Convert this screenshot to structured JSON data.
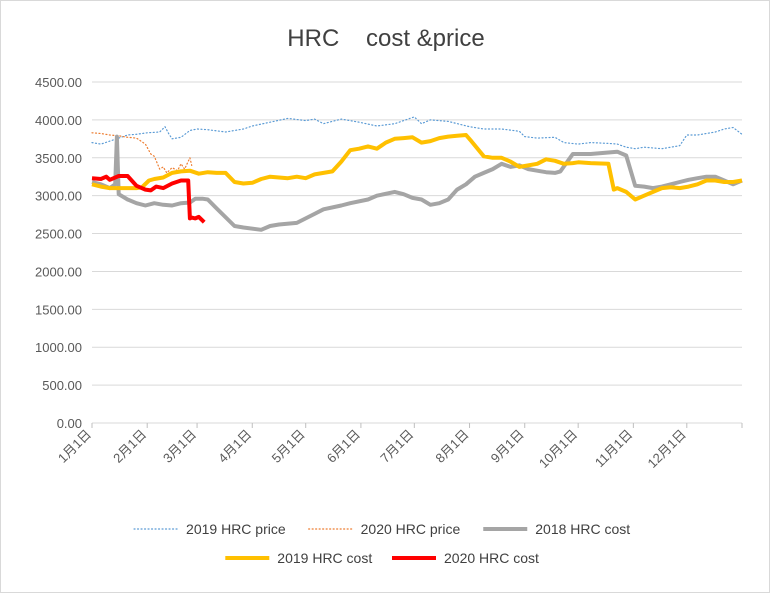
{
  "chart_data": {
    "type": "line",
    "title": "HRC    cost &price",
    "ylim": [
      0,
      4500
    ],
    "y_ticks": [
      "0.00",
      "500.00",
      "1000.00",
      "1500.00",
      "2000.00",
      "2500.00",
      "3000.00",
      "3500.00",
      "4000.00",
      "4500.00"
    ],
    "x_ticks": [
      "1月1日",
      "2月1日",
      "3月1日",
      "4月1日",
      "5月1日",
      "6月1日",
      "7月1日",
      "8月1日",
      "9月1日",
      "10月1日",
      "11月1日",
      "12月1日"
    ],
    "xlim_days": [
      0,
      365
    ],
    "grid": true,
    "legend_position": "bottom",
    "series": [
      {
        "name": "2019 HRC price",
        "color": "#5b9bd5",
        "style": "dotted",
        "width": 1.2,
        "x": [
          0,
          5,
          10,
          15,
          20,
          25,
          31,
          38,
          41,
          43,
          45,
          50,
          55,
          59,
          65,
          75,
          85,
          90,
          100,
          110,
          120,
          125,
          130,
          140,
          150,
          160,
          170,
          181,
          185,
          190,
          200,
          212,
          220,
          230,
          240,
          243,
          250,
          260,
          265,
          273,
          280,
          290,
          295,
          300,
          305,
          310,
          320,
          330,
          334,
          340,
          350,
          355,
          360,
          365
        ],
        "values": [
          3700,
          3680,
          3720,
          3760,
          3800,
          3810,
          3830,
          3840,
          3910,
          3820,
          3750,
          3770,
          3860,
          3880,
          3870,
          3840,
          3880,
          3920,
          3970,
          4020,
          3990,
          4010,
          3950,
          4010,
          3970,
          3920,
          3950,
          4040,
          3950,
          4000,
          3980,
          3910,
          3880,
          3880,
          3850,
          3780,
          3760,
          3770,
          3700,
          3680,
          3700,
          3690,
          3680,
          3640,
          3620,
          3640,
          3620,
          3660,
          3800,
          3800,
          3840,
          3880,
          3900,
          3810
        ]
      },
      {
        "name": "2020 HRC price",
        "color": "#ed7d31",
        "style": "dotted",
        "width": 1.2,
        "x": [
          0,
          5,
          10,
          15,
          20,
          25,
          30,
          33,
          35,
          38,
          40,
          42,
          45,
          48,
          50,
          52,
          55,
          56
        ],
        "values": [
          3830,
          3820,
          3800,
          3790,
          3770,
          3760,
          3680,
          3550,
          3520,
          3350,
          3380,
          3300,
          3370,
          3330,
          3420,
          3350,
          3500,
          3400
        ]
      },
      {
        "name": "2018 HRC cost",
        "color": "#a5a5a5",
        "style": "solid",
        "width": 4,
        "x": [
          0,
          5,
          10,
          13,
          14,
          15,
          20,
          25,
          30,
          35,
          40,
          45,
          50,
          55,
          58,
          62,
          65,
          70,
          80,
          85,
          95,
          100,
          105,
          115,
          120,
          125,
          130,
          140,
          145,
          155,
          160,
          170,
          175,
          180,
          185,
          190,
          195,
          200,
          205,
          210,
          215,
          220,
          225,
          230,
          235,
          240,
          245,
          250,
          255,
          260,
          263,
          270,
          280,
          290,
          295,
          300,
          305,
          310,
          315,
          320,
          325,
          330,
          335,
          340,
          345,
          350,
          355,
          360,
          365
        ],
        "values": [
          3180,
          3150,
          3100,
          3150,
          3780,
          3020,
          2950,
          2900,
          2870,
          2900,
          2880,
          2870,
          2900,
          2910,
          2960,
          2960,
          2950,
          2830,
          2600,
          2580,
          2550,
          2600,
          2620,
          2640,
          2700,
          2760,
          2820,
          2870,
          2900,
          2950,
          3000,
          3050,
          3020,
          2970,
          2950,
          2880,
          2900,
          2950,
          3080,
          3150,
          3250,
          3300,
          3350,
          3420,
          3380,
          3400,
          3350,
          3330,
          3310,
          3300,
          3320,
          3550,
          3550,
          3570,
          3580,
          3530,
          3130,
          3120,
          3100,
          3120,
          3150,
          3180,
          3210,
          3230,
          3250,
          3250,
          3200,
          3150,
          3200
        ]
      },
      {
        "name": "2019 HRC cost",
        "color": "#ffc000",
        "style": "solid",
        "width": 4,
        "x": [
          0,
          5,
          10,
          15,
          20,
          25,
          28,
          32,
          35,
          40,
          45,
          50,
          55,
          60,
          65,
          70,
          75,
          80,
          85,
          90,
          95,
          100,
          105,
          110,
          115,
          120,
          125,
          130,
          135,
          140,
          145,
          150,
          155,
          160,
          165,
          170,
          175,
          180,
          185,
          190,
          195,
          200,
          205,
          210,
          213,
          220,
          225,
          230,
          235,
          240,
          245,
          250,
          255,
          260,
          265,
          270,
          273,
          280,
          290,
          293,
          295,
          300,
          305,
          310,
          315,
          320,
          325,
          330,
          335,
          340,
          345,
          350,
          355,
          360,
          365
        ],
        "values": [
          3150,
          3120,
          3100,
          3100,
          3100,
          3100,
          3110,
          3200,
          3220,
          3240,
          3300,
          3320,
          3330,
          3290,
          3310,
          3300,
          3300,
          3180,
          3160,
          3170,
          3220,
          3250,
          3240,
          3230,
          3250,
          3230,
          3280,
          3300,
          3320,
          3450,
          3600,
          3620,
          3650,
          3620,
          3700,
          3750,
          3760,
          3770,
          3700,
          3720,
          3760,
          3780,
          3790,
          3800,
          3720,
          3520,
          3500,
          3500,
          3450,
          3380,
          3400,
          3420,
          3480,
          3460,
          3420,
          3430,
          3440,
          3430,
          3420,
          3080,
          3100,
          3050,
          2950,
          3000,
          3050,
          3100,
          3110,
          3100,
          3120,
          3150,
          3200,
          3200,
          3180,
          3180,
          3200
        ]
      },
      {
        "name": "2020 HRC cost",
        "color": "#ff0000",
        "style": "solid",
        "width": 4,
        "x": [
          0,
          5,
          8,
          10,
          15,
          20,
          25,
          30,
          33,
          36,
          40,
          45,
          50,
          54,
          55,
          56,
          58,
          60,
          63
        ],
        "values": [
          3230,
          3220,
          3250,
          3210,
          3260,
          3260,
          3130,
          3080,
          3070,
          3120,
          3100,
          3160,
          3200,
          3200,
          2700,
          2710,
          2700,
          2720,
          2650
        ]
      }
    ]
  }
}
